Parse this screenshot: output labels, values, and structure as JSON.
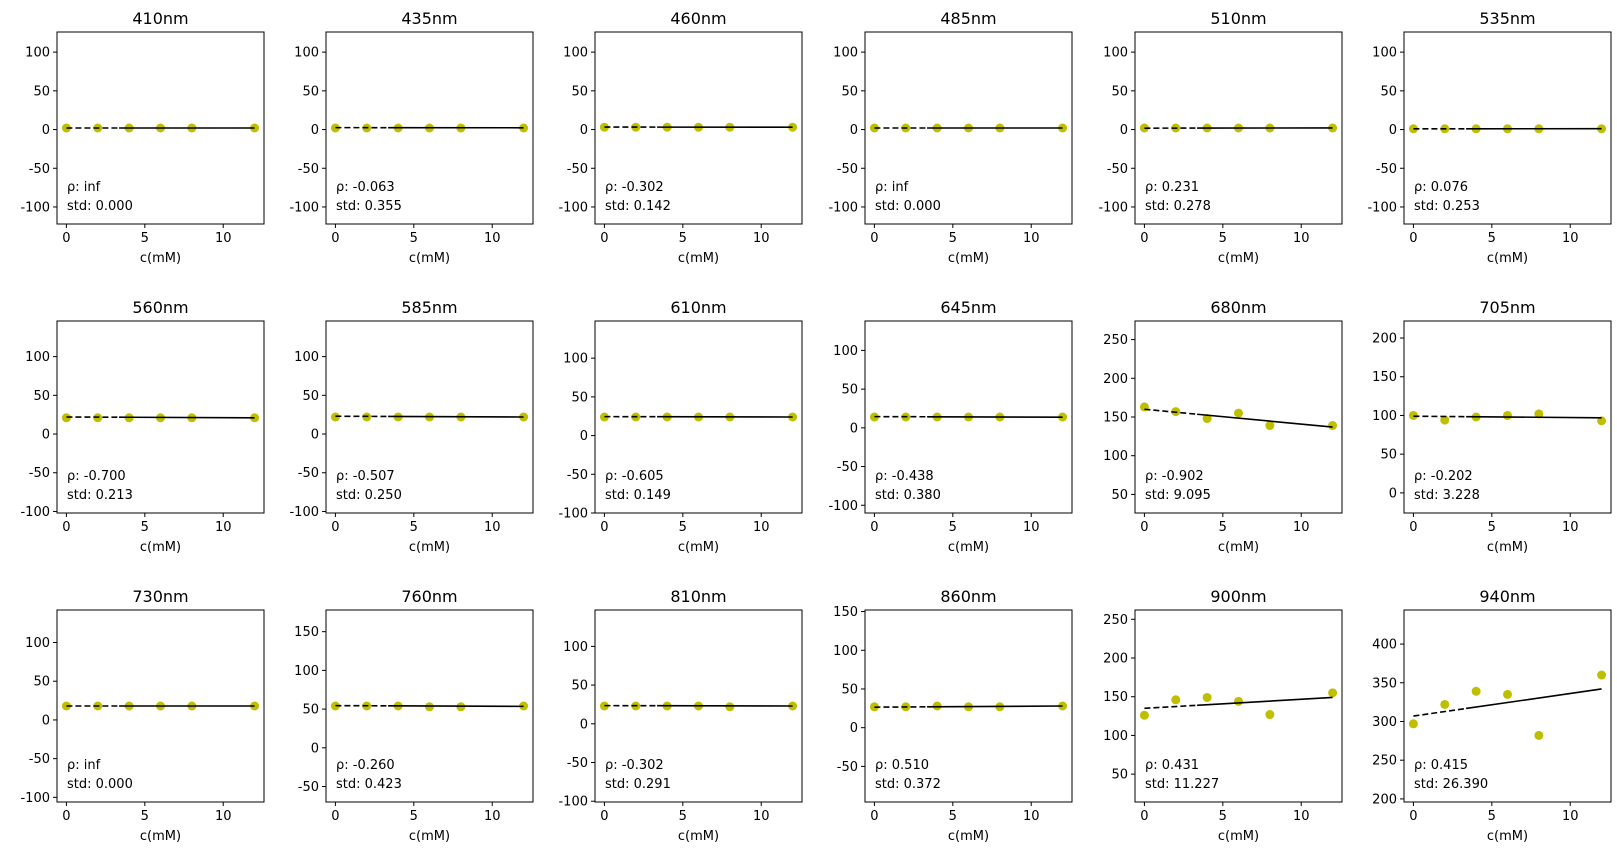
{
  "colors": {
    "points": "#bfbf00",
    "fit": "#000000",
    "frame": "#000000",
    "background": "#ffffff"
  },
  "xlabel": "c(mM)",
  "chart_data": [
    {
      "type": "scatter",
      "title": "410nm",
      "xlabel": "c(mM)",
      "xlim": [
        -0.6,
        12.6
      ],
      "ylim": [
        -122,
        126
      ],
      "yticks": [
        -100,
        -50,
        0,
        50,
        100
      ],
      "xticks": [
        0,
        5,
        10
      ],
      "x": [
        0,
        2,
        4,
        6,
        8,
        12
      ],
      "y": [
        2,
        2,
        2,
        2,
        2,
        2
      ],
      "fit": {
        "x": [
          0,
          12
        ],
        "y": [
          2,
          2
        ]
      },
      "rho_label": "ρ: inf",
      "std_label": "std: 0.000"
    },
    {
      "type": "scatter",
      "title": "435nm",
      "xlabel": "c(mM)",
      "xlim": [
        -0.6,
        12.6
      ],
      "ylim": [
        -122,
        126
      ],
      "yticks": [
        -100,
        -50,
        0,
        50,
        100
      ],
      "xticks": [
        0,
        5,
        10
      ],
      "x": [
        0,
        2,
        4,
        6,
        8,
        12
      ],
      "y": [
        2,
        2,
        2,
        2,
        2,
        2
      ],
      "fit": {
        "x": [
          0,
          12
        ],
        "y": [
          2.5,
          2.3
        ]
      },
      "rho_label": "ρ: -0.063",
      "std_label": "std: 0.355"
    },
    {
      "type": "scatter",
      "title": "460nm",
      "xlabel": "c(mM)",
      "xlim": [
        -0.6,
        12.6
      ],
      "ylim": [
        -122,
        126
      ],
      "yticks": [
        -100,
        -50,
        0,
        50,
        100
      ],
      "xticks": [
        0,
        5,
        10
      ],
      "x": [
        0,
        2,
        4,
        6,
        8,
        12
      ],
      "y": [
        3,
        3,
        3,
        3,
        3,
        3
      ],
      "fit": {
        "x": [
          0,
          12
        ],
        "y": [
          3.2,
          3
        ]
      },
      "rho_label": "ρ: -0.302",
      "std_label": "std: 0.142"
    },
    {
      "type": "scatter",
      "title": "485nm",
      "xlabel": "c(mM)",
      "xlim": [
        -0.6,
        12.6
      ],
      "ylim": [
        -122,
        126
      ],
      "yticks": [
        -100,
        -50,
        0,
        50,
        100
      ],
      "xticks": [
        0,
        5,
        10
      ],
      "x": [
        0,
        2,
        4,
        6,
        8,
        12
      ],
      "y": [
        2,
        2,
        2,
        2,
        2,
        2
      ],
      "fit": {
        "x": [
          0,
          12
        ],
        "y": [
          2,
          2
        ]
      },
      "rho_label": "ρ: inf",
      "std_label": "std: 0.000"
    },
    {
      "type": "scatter",
      "title": "510nm",
      "xlabel": "c(mM)",
      "xlim": [
        -0.6,
        12.6
      ],
      "ylim": [
        -122,
        126
      ],
      "yticks": [
        -100,
        -50,
        0,
        50,
        100
      ],
      "xticks": [
        0,
        5,
        10
      ],
      "x": [
        0,
        2,
        4,
        6,
        8,
        12
      ],
      "y": [
        2,
        2,
        2,
        2,
        2,
        2
      ],
      "fit": {
        "x": [
          0,
          12
        ],
        "y": [
          1.8,
          2.1
        ]
      },
      "rho_label": "ρ: 0.231",
      "std_label": "std: 0.278"
    },
    {
      "type": "scatter",
      "title": "535nm",
      "xlabel": "c(mM)",
      "xlim": [
        -0.6,
        12.6
      ],
      "ylim": [
        -122,
        126
      ],
      "yticks": [
        -100,
        -50,
        0,
        50,
        100
      ],
      "xticks": [
        0,
        5,
        10
      ],
      "x": [
        0,
        2,
        4,
        6,
        8,
        12
      ],
      "y": [
        1,
        1,
        1,
        1,
        1,
        1
      ],
      "fit": {
        "x": [
          0,
          12
        ],
        "y": [
          0.9,
          1.1
        ]
      },
      "rho_label": "ρ: 0.076",
      "std_label": "std: 0.253"
    },
    {
      "type": "scatter",
      "title": "560nm",
      "xlabel": "c(mM)",
      "xlim": [
        -0.6,
        12.6
      ],
      "ylim": [
        -102,
        146
      ],
      "yticks": [
        -100,
        -50,
        0,
        50,
        100
      ],
      "xticks": [
        0,
        5,
        10
      ],
      "x": [
        0,
        2,
        4,
        6,
        8,
        12
      ],
      "y": [
        21,
        21,
        21,
        21,
        21,
        21
      ],
      "fit": {
        "x": [
          0,
          12
        ],
        "y": [
          22,
          21
        ]
      },
      "rho_label": "ρ: -0.700",
      "std_label": "std: 0.213"
    },
    {
      "type": "scatter",
      "title": "585nm",
      "xlabel": "c(mM)",
      "xlim": [
        -0.6,
        12.6
      ],
      "ylim": [
        -102,
        146
      ],
      "yticks": [
        -100,
        -50,
        0,
        50,
        100
      ],
      "xticks": [
        0,
        5,
        10
      ],
      "x": [
        0,
        2,
        4,
        6,
        8,
        12
      ],
      "y": [
        22,
        22,
        22,
        22,
        22,
        22
      ],
      "fit": {
        "x": [
          0,
          12
        ],
        "y": [
          23,
          22
        ]
      },
      "rho_label": "ρ: -0.507",
      "std_label": "std: 0.250"
    },
    {
      "type": "scatter",
      "title": "610nm",
      "xlabel": "c(mM)",
      "xlim": [
        -0.6,
        12.6
      ],
      "ylim": [
        -100,
        148
      ],
      "yticks": [
        -100,
        -50,
        0,
        50,
        100
      ],
      "xticks": [
        0,
        5,
        10
      ],
      "x": [
        0,
        2,
        4,
        6,
        8,
        12
      ],
      "y": [
        24,
        24,
        24,
        24,
        24,
        24
      ],
      "fit": {
        "x": [
          0,
          12
        ],
        "y": [
          24.5,
          24
        ]
      },
      "rho_label": "ρ: -0.605",
      "std_label": "std: 0.149"
    },
    {
      "type": "scatter",
      "title": "645nm",
      "xlabel": "c(mM)",
      "xlim": [
        -0.6,
        12.6
      ],
      "ylim": [
        -110,
        138
      ],
      "yticks": [
        -100,
        -50,
        0,
        50,
        100
      ],
      "xticks": [
        0,
        5,
        10
      ],
      "x": [
        0,
        2,
        4,
        6,
        8,
        12
      ],
      "y": [
        14,
        14,
        14,
        14,
        14,
        14
      ],
      "fit": {
        "x": [
          0,
          12
        ],
        "y": [
          14.5,
          13.8
        ]
      },
      "rho_label": "ρ: -0.438",
      "std_label": "std: 0.380"
    },
    {
      "type": "scatter",
      "title": "680nm",
      "xlabel": "c(mM)",
      "xlim": [
        -0.6,
        12.6
      ],
      "ylim": [
        26,
        274
      ],
      "yticks": [
        50,
        100,
        150,
        200,
        250
      ],
      "xticks": [
        0,
        5,
        10
      ],
      "x": [
        0,
        2,
        4,
        6,
        8,
        12
      ],
      "y": [
        163,
        157,
        148,
        155,
        139,
        139
      ],
      "fit": {
        "x": [
          0,
          12
        ],
        "y": [
          160,
          137
        ]
      },
      "rho_label": "ρ: -0.902",
      "std_label": "std: 9.095"
    },
    {
      "type": "scatter",
      "title": "705nm",
      "xlabel": "c(mM)",
      "xlim": [
        -0.6,
        12.6
      ],
      "ylim": [
        -26,
        222
      ],
      "yticks": [
        0,
        50,
        100,
        150,
        200
      ],
      "xticks": [
        0,
        5,
        10
      ],
      "x": [
        0,
        2,
        4,
        6,
        8,
        12
      ],
      "y": [
        100,
        94,
        98,
        100,
        102,
        93
      ],
      "fit": {
        "x": [
          0,
          12
        ],
        "y": [
          99,
          97
        ]
      },
      "rho_label": "ρ: -0.202",
      "std_label": "std: 3.228"
    },
    {
      "type": "scatter",
      "title": "730nm",
      "xlabel": "c(mM)",
      "xlim": [
        -0.6,
        12.6
      ],
      "ylim": [
        -106,
        142
      ],
      "yticks": [
        -100,
        -50,
        0,
        50,
        100
      ],
      "xticks": [
        0,
        5,
        10
      ],
      "x": [
        0,
        2,
        4,
        6,
        8,
        12
      ],
      "y": [
        18,
        18,
        18,
        18,
        18,
        18
      ],
      "fit": {
        "x": [
          0,
          12
        ],
        "y": [
          18,
          18
        ]
      },
      "rho_label": "ρ: inf",
      "std_label": "std: 0.000"
    },
    {
      "type": "scatter",
      "title": "760nm",
      "xlabel": "c(mM)",
      "xlim": [
        -0.6,
        12.6
      ],
      "ylim": [
        -70,
        178
      ],
      "yticks": [
        -50,
        0,
        50,
        100,
        150
      ],
      "xticks": [
        0,
        5,
        10
      ],
      "x": [
        0,
        2,
        4,
        6,
        8,
        12
      ],
      "y": [
        54,
        54,
        54,
        53,
        53,
        54
      ],
      "fit": {
        "x": [
          0,
          12
        ],
        "y": [
          54.5,
          53.5
        ]
      },
      "rho_label": "ρ: -0.260",
      "std_label": "std: 0.423"
    },
    {
      "type": "scatter",
      "title": "810nm",
      "xlabel": "c(mM)",
      "xlim": [
        -0.6,
        12.6
      ],
      "ylim": [
        -101,
        147
      ],
      "yticks": [
        -100,
        -50,
        0,
        50,
        100
      ],
      "xticks": [
        0,
        5,
        10
      ],
      "x": [
        0,
        2,
        4,
        6,
        8,
        12
      ],
      "y": [
        23,
        23,
        23,
        23,
        22,
        23
      ],
      "fit": {
        "x": [
          0,
          12
        ],
        "y": [
          23.5,
          23
        ]
      },
      "rho_label": "ρ: -0.302",
      "std_label": "std: 0.291"
    },
    {
      "type": "scatter",
      "title": "860nm",
      "xlabel": "c(mM)",
      "xlim": [
        -0.6,
        12.6
      ],
      "ylim": [
        -96,
        152
      ],
      "yticks": [
        -50,
        0,
        50,
        100,
        150
      ],
      "xticks": [
        0,
        5,
        10
      ],
      "x": [
        0,
        2,
        4,
        6,
        8,
        12
      ],
      "y": [
        27,
        27,
        28,
        27,
        27,
        28
      ],
      "fit": {
        "x": [
          0,
          12
        ],
        "y": [
          26.5,
          28
        ]
      },
      "rho_label": "ρ: 0.510",
      "std_label": "std: 0.372"
    },
    {
      "type": "scatter",
      "title": "900nm",
      "xlabel": "c(mM)",
      "xlim": [
        -0.6,
        12.6
      ],
      "ylim": [
        14,
        262
      ],
      "yticks": [
        50,
        100,
        150,
        200,
        250
      ],
      "xticks": [
        0,
        5,
        10
      ],
      "x": [
        0,
        2,
        4,
        6,
        8,
        12
      ],
      "y": [
        126,
        146,
        149,
        144,
        127,
        155
      ],
      "fit": {
        "x": [
          0,
          12
        ],
        "y": [
          135,
          149
        ]
      },
      "rho_label": "ρ: 0.431",
      "std_label": "std: 11.227"
    },
    {
      "type": "scatter",
      "title": "940nm",
      "xlabel": "c(mM)",
      "xlim": [
        -0.6,
        12.6
      ],
      "ylim": [
        196,
        444
      ],
      "yticks": [
        200,
        250,
        300,
        350,
        400
      ],
      "xticks": [
        0,
        5,
        10
      ],
      "x": [
        0,
        2,
        4,
        6,
        8,
        12
      ],
      "y": [
        297,
        322,
        339,
        335,
        282,
        360
      ],
      "fit": {
        "x": [
          0,
          12
        ],
        "y": [
          307,
          342
        ]
      },
      "rho_label": "ρ: 0.415",
      "std_label": "std: 26.390"
    }
  ]
}
